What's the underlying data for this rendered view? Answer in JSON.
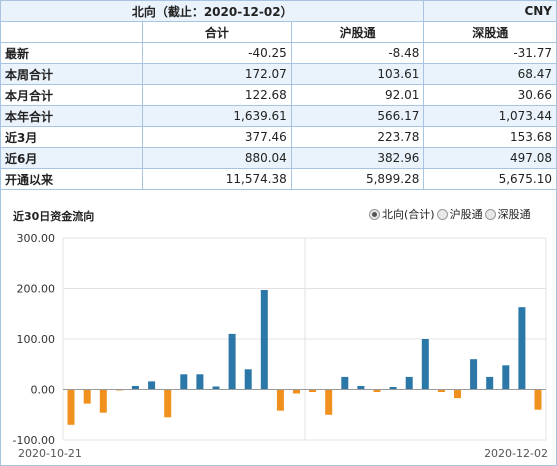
{
  "table": {
    "title": "北向（截止：2020-12-02）",
    "unit": "CNY",
    "columns": [
      "合计",
      "沪股通",
      "深股通"
    ],
    "rows": [
      {
        "label": "最新",
        "values": [
          "-40.25",
          "-8.48",
          "-31.77"
        ]
      },
      {
        "label": "本周合计",
        "values": [
          "172.07",
          "103.61",
          "68.47"
        ]
      },
      {
        "label": "本月合计",
        "values": [
          "122.68",
          "92.01",
          "30.66"
        ]
      },
      {
        "label": "本年合计",
        "values": [
          "1,639.61",
          "566.17",
          "1,073.44"
        ]
      },
      {
        "label": "近3月",
        "values": [
          "377.46",
          "223.78",
          "153.68"
        ]
      },
      {
        "label": "近6月",
        "values": [
          "880.04",
          "382.96",
          "497.08"
        ]
      },
      {
        "label": "开通以来",
        "values": [
          "11,574.38",
          "5,899.28",
          "5,675.10"
        ]
      }
    ]
  },
  "chart_header": {
    "title": "近30日资金流向",
    "legend": [
      {
        "label": "北向(合计)",
        "checked": true
      },
      {
        "label": "沪股通",
        "checked": false
      },
      {
        "label": "深股通",
        "checked": false
      }
    ]
  },
  "colors": {
    "positive": "#2a77a8",
    "negative": "#f0901e",
    "grid": "#e3e3e3",
    "axis": "#999999",
    "border": "#a9c4e0",
    "alt_row": "#eaf2fb"
  },
  "chart_data": {
    "type": "bar",
    "title": "",
    "xlabel": "",
    "ylabel": "",
    "ylim": [
      -100,
      300
    ],
    "yticks": [
      "300.00",
      "200.00",
      "100.00",
      "0.00",
      "-100.00"
    ],
    "x_labels": [
      "2020-10-21",
      "2020-12-02"
    ],
    "grid": true,
    "values": [
      -70,
      -28,
      -46,
      -2,
      7,
      16,
      -55,
      30,
      30,
      6,
      110,
      40,
      197,
      -42,
      -8,
      -5,
      -50,
      25,
      7,
      -5,
      5,
      25,
      100,
      -5,
      -17,
      60,
      25,
      48,
      163,
      -40
    ]
  }
}
